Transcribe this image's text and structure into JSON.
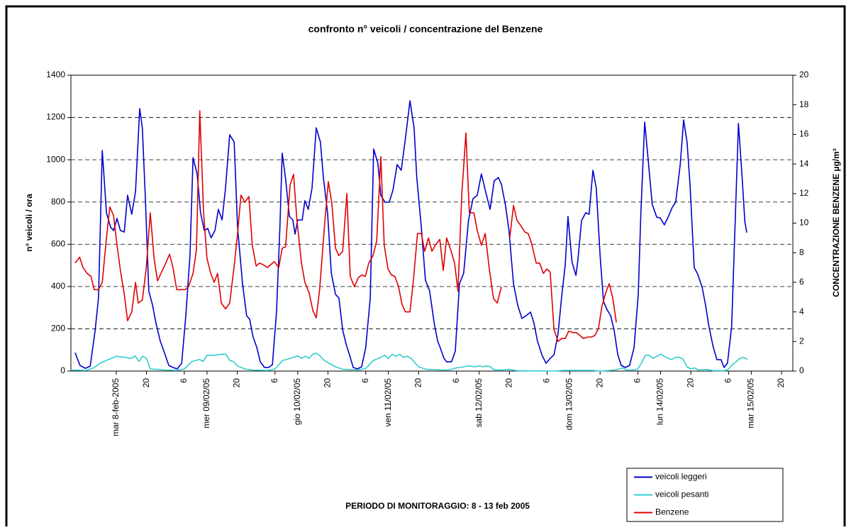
{
  "chart_data": {
    "type": "line",
    "title": "confronto n° veicoli / concentrazione del Benzene",
    "subtitle": "PERIODO DI MONITORAGGIO: 8 - 13 feb 2005",
    "y_label": "n° veicoli / ora",
    "y2_label": "CONCENTRAZIONE BENZENE µg/m³",
    "xlim": [
      0,
      191
    ],
    "ylim": [
      0,
      1400
    ],
    "y2lim": [
      0,
      20
    ],
    "yticks": [
      0,
      200,
      400,
      600,
      800,
      1000,
      1200,
      1400
    ],
    "y2ticks": [
      0,
      2,
      4,
      6,
      8,
      10,
      12,
      14,
      16,
      18,
      20
    ],
    "xticks": [
      {
        "value": 12,
        "label": "mar 8-feb-2005"
      },
      20,
      {
        "value": 30,
        "label": "6"
      },
      {
        "value": 36,
        "label": "mer 09/02/05"
      },
      {
        "value": 44,
        "label": "20"
      },
      {
        "value": 54,
        "label": "6"
      },
      {
        "value": 60,
        "label": "gio 10/02/05"
      },
      {
        "value": 68,
        "label": "20"
      },
      {
        "value": 78,
        "label": "6"
      },
      {
        "value": 84,
        "label": "ven 11/02/05"
      },
      {
        "value": 92,
        "label": "20"
      },
      {
        "value": 102,
        "label": "6"
      },
      {
        "value": 108,
        "label": "sab 12/02/05"
      },
      {
        "value": 116,
        "label": "20"
      },
      {
        "value": 126,
        "label": "6"
      },
      {
        "value": 132,
        "label": "dom 13/02/05"
      },
      {
        "value": 140,
        "label": "20"
      },
      {
        "value": 150,
        "label": "6"
      },
      {
        "value": 156,
        "label": "lun 14/02/05"
      },
      {
        "value": 164,
        "label": "20"
      },
      {
        "value": 174,
        "label": "6"
      },
      {
        "value": 180,
        "label": "mar 15/02/05"
      },
      {
        "value": 188,
        "label": "20"
      }
    ],
    "grid": true,
    "legend": "bottom-right",
    "series": [
      {
        "name": "veicoli leggeri",
        "color": "#0000cc",
        "x": [
          1.1,
          2.4,
          3.8,
          5.1,
          6.4,
          7.3,
          8.3,
          9.4,
          10.5,
          11.3,
          12.2,
          13.1,
          14.1,
          15.0,
          16.1,
          17.1,
          18.2,
          18.9,
          19.7,
          20.6,
          21.6,
          22.5,
          23.6,
          24.8,
          25.9,
          27.0,
          28.1,
          29.3,
          30.4,
          31.5,
          32.3,
          33.4,
          34.3,
          35.3,
          36.2,
          37.1,
          38.1,
          39.0,
          40.0,
          40.9,
          42.0,
          43.2,
          44.1,
          45.4,
          46.5,
          47.3,
          48.2,
          49.2,
          50.1,
          51.2,
          52.3,
          53.3,
          54.4,
          55.3,
          55.9,
          56.8,
          57.8,
          58.7,
          59.3,
          60.0,
          61.2,
          61.9,
          62.8,
          63.8,
          64.9,
          66.0,
          66.8,
          67.9,
          68.9,
          70.0,
          70.9,
          71.9,
          72.8,
          73.7,
          74.7,
          75.8,
          76.9,
          78.0,
          79.2,
          80.1,
          81.2,
          82.0,
          83.1,
          84.2,
          85.2,
          86.3,
          87.4,
          88.5,
          89.7,
          90.8,
          91.5,
          92.7,
          93.8,
          94.9,
          96.1,
          97.0,
          97.7,
          98.7,
          99.4,
          100.7,
          101.7,
          102.8,
          103.9,
          105.2,
          106.4,
          107.5,
          108.6,
          109.8,
          110.9,
          112.0,
          113.1,
          113.9,
          115.0,
          115.9,
          117.1,
          118.2,
          119.3,
          120.4,
          121.6,
          122.5,
          123.4,
          124.6,
          125.7,
          126.8,
          127.8,
          128.9,
          129.8,
          130.8,
          131.5,
          132.6,
          133.6,
          134.1,
          135.1,
          136.2,
          137.1,
          138.1,
          139.0,
          140.0,
          140.9,
          141.8,
          142.8,
          143.7,
          144.7,
          145.6,
          146.7,
          147.8,
          149.0,
          150.1,
          150.8,
          151.8,
          152.9,
          153.8,
          155.0,
          155.9,
          157.0,
          158.1,
          159.1,
          160.0,
          161.2,
          162.1,
          163.0,
          163.8,
          164.9,
          165.8,
          167.0,
          167.9,
          168.8,
          169.9,
          170.9,
          172.0,
          172.8,
          173.7,
          174.8,
          175.8,
          176.6,
          177.6,
          178.3,
          178.8
        ],
        "values": [
          87,
          27,
          13,
          23,
          191,
          346,
          1044,
          749,
          681,
          665,
          722,
          665,
          658,
          832,
          742,
          849,
          1242,
          1151,
          816,
          379,
          312,
          228,
          144,
          84,
          27,
          17,
          10,
          37,
          262,
          547,
          1010,
          933,
          749,
          665,
          675,
          631,
          665,
          765,
          715,
          866,
          1118,
          1084,
          681,
          413,
          262,
          245,
          161,
          111,
          44,
          17,
          17,
          30,
          279,
          681,
          1031,
          910,
          732,
          715,
          648,
          715,
          715,
          806,
          765,
          866,
          1151,
          1084,
          916,
          749,
          463,
          363,
          346,
          195,
          128,
          77,
          17,
          10,
          20,
          111,
          346,
          1051,
          984,
          832,
          799,
          799,
          856,
          977,
          950,
          1101,
          1279,
          1151,
          916,
          681,
          430,
          379,
          228,
          144,
          111,
          60,
          44,
          44,
          94,
          413,
          463,
          715,
          816,
          832,
          933,
          843,
          765,
          900,
          916,
          883,
          782,
          665,
          413,
          312,
          249,
          262,
          279,
          228,
          144,
          77,
          37,
          60,
          77,
          178,
          346,
          504,
          732,
          514,
          453,
          520,
          712,
          749,
          742,
          950,
          866,
          547,
          329,
          292,
          262,
          195,
          77,
          27,
          17,
          27,
          111,
          363,
          749,
          1178,
          967,
          789,
          728,
          725,
          692,
          732,
          775,
          799,
          977,
          1188,
          1084,
          883,
          490,
          460,
          396,
          312,
          211,
          117,
          54,
          54,
          17,
          37,
          211,
          738,
          1172,
          910,
          708,
          655
        ]
      },
      {
        "name": "veicoli pesanti",
        "color": "#33cccc",
        "x": [
          0,
          4,
          6,
          8,
          10,
          12,
          14,
          16,
          17,
          18,
          19,
          20,
          21,
          23,
          25,
          28,
          30,
          32,
          34,
          35,
          36,
          38,
          40,
          41,
          42,
          43,
          44,
          46,
          48,
          52,
          54,
          56,
          58,
          60,
          61,
          62,
          63,
          64,
          65,
          66,
          67,
          68,
          70,
          72,
          76,
          78,
          80,
          82,
          83,
          84,
          85,
          86,
          87,
          88,
          89,
          90,
          91,
          92,
          94,
          98,
          100,
          102,
          104,
          105,
          107,
          108,
          109,
          110,
          111,
          112,
          114,
          116,
          118,
          128,
          130,
          138,
          140,
          144,
          146,
          147,
          149,
          150,
          151,
          152,
          153,
          154,
          156,
          158,
          159,
          160,
          161,
          162,
          163,
          164,
          165,
          166,
          168,
          170,
          173,
          174,
          175,
          176,
          177,
          178,
          179
        ],
        "values": [
          5,
          3,
          15,
          40,
          55,
          70,
          65,
          60,
          72,
          45,
          70,
          60,
          10,
          8,
          5,
          3,
          10,
          45,
          55,
          45,
          75,
          75,
          80,
          80,
          50,
          45,
          25,
          10,
          5,
          3,
          10,
          50,
          60,
          72,
          60,
          70,
          60,
          80,
          85,
          70,
          50,
          40,
          20,
          8,
          5,
          12,
          50,
          65,
          75,
          60,
          80,
          70,
          80,
          65,
          70,
          60,
          40,
          20,
          8,
          5,
          5,
          15,
          20,
          25,
          20,
          25,
          20,
          25,
          20,
          5,
          5,
          8,
          2,
          0,
          3,
          3,
          0,
          5,
          15,
          5,
          5,
          10,
          40,
          75,
          75,
          60,
          80,
          60,
          55,
          65,
          65,
          55,
          20,
          10,
          15,
          5,
          8,
          2,
          2,
          10,
          30,
          45,
          60,
          65,
          55
        ]
      },
      {
        "name": "Benzene",
        "color": "#e00000",
        "axis": "y2",
        "x": [
          1.1,
          2.3,
          3.2,
          4.3,
          5.3,
          6.2,
          7.3,
          8.3,
          9.4,
          10.3,
          11.3,
          12.2,
          13.1,
          14.1,
          15.0,
          16.1,
          17.1,
          17.8,
          18.9,
          19.9,
          21.0,
          22.0,
          22.9,
          24.0,
          25.1,
          26.1,
          27.0,
          28.0,
          29.1,
          30.2,
          31.1,
          32.3,
          33.2,
          34.1,
          35.1,
          36.0,
          37.0,
          37.9,
          38.8,
          39.8,
          40.9,
          42.0,
          43.2,
          44.1,
          45.0,
          46.0,
          47.1,
          48.0,
          49.0,
          49.9,
          50.8,
          52.0,
          52.9,
          53.8,
          55.0,
          55.9,
          56.8,
          58.0,
          58.9,
          59.8,
          61.0,
          61.9,
          63.0,
          64.0,
          64.9,
          65.8,
          67.2,
          68.1,
          69.0,
          70.0,
          70.9,
          71.9,
          73.0,
          73.9,
          75.0,
          76.0,
          76.9,
          77.9,
          78.8,
          79.9,
          80.9,
          82.0,
          82.9,
          83.9,
          84.8,
          85.7,
          86.7,
          87.6,
          88.5,
          89.7,
          90.6,
          91.7,
          92.7,
          93.6,
          94.6,
          95.5,
          96.4,
          97.6,
          98.5,
          99.4,
          100.6,
          101.5,
          102.4,
          103.4,
          104.5,
          105.4,
          106.6,
          107.5,
          108.6,
          109.6,
          110.7,
          111.8,
          112.8,
          113.9,
          115,
          116.1,
          117.1,
          118.0,
          119.1,
          120.1,
          121.0,
          121.9,
          123.1,
          124.0,
          125.0,
          125.9,
          126.8,
          127.8,
          128.9,
          129.8,
          130.8,
          131.7,
          132.8,
          133.8,
          134.7,
          135.6,
          136.8,
          137.7,
          138.6,
          139.6,
          140.5,
          141.5,
          142.4,
          143.3,
          144.3
        ],
        "values": [
          7.3,
          7.7,
          7.0,
          6.6,
          6.4,
          5.5,
          5.5,
          6.0,
          9.0,
          11.1,
          10.5,
          8.5,
          6.8,
          5.2,
          3.4,
          4.0,
          6.0,
          4.6,
          4.8,
          6.9,
          10.7,
          7.6,
          6.1,
          6.7,
          7.3,
          7.9,
          7.0,
          5.5,
          5.5,
          5.5,
          5.7,
          6.6,
          8.2,
          17.6,
          10.7,
          7.6,
          6.6,
          6.0,
          6.6,
          4.6,
          4.2,
          4.6,
          7.1,
          9.3,
          11.9,
          11.4,
          11.8,
          8.5,
          7.1,
          7.3,
          7.2,
          7.0,
          7.2,
          7.4,
          7.0,
          8.3,
          8.4,
          12.6,
          13.3,
          10.2,
          7.3,
          6.0,
          5.3,
          4.1,
          3.6,
          5.5,
          10.2,
          12.8,
          11.4,
          8.3,
          7.8,
          8.1,
          12.0,
          6.4,
          5.7,
          6.3,
          6.5,
          6.4,
          7.3,
          7.8,
          8.8,
          14.5,
          8.5,
          6.9,
          6.5,
          6.4,
          5.7,
          4.5,
          4.0,
          4.0,
          6.1,
          9.3,
          9.3,
          8.1,
          9.0,
          8.1,
          8.5,
          8.9,
          6.8,
          9.0,
          8.1,
          7.3,
          5.4,
          11.9,
          16.1,
          10.7,
          10.7,
          9.5,
          8.5,
          9.3,
          6.9,
          4.9,
          4.6,
          5.7,
          null,
          9.0,
          11.2,
          10.2,
          9.8,
          9.4,
          9.3,
          8.6,
          7.3,
          7.3,
          6.6,
          6.9,
          6.7,
          2.8,
          2.0,
          2.2,
          2.2,
          2.7,
          2.6,
          2.6,
          2.4,
          2.2,
          2.3,
          2.3,
          2.4,
          2.9,
          4.4,
          5.3,
          5.9,
          5.0,
          3.3
        ]
      }
    ]
  }
}
